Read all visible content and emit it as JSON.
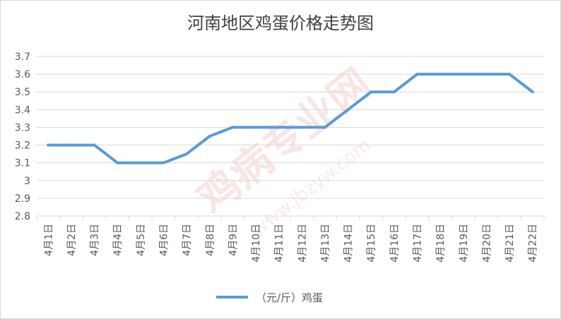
{
  "chart_data": {
    "type": "line",
    "title": "河南地区鸡蛋价格走势图",
    "categories": [
      "4月1日",
      "4月2日",
      "4月3日",
      "4月4日",
      "4月5日",
      "4月6日",
      "4月7日",
      "4月8日",
      "4月9日",
      "4月10日",
      "4月11日",
      "4月12日",
      "4月13日",
      "4月14日",
      "4月15日",
      "4月16日",
      "4月17日",
      "4月18日",
      "4月19日",
      "4月20日",
      "4月21日",
      "4月22日"
    ],
    "series": [
      {
        "name": "（元/斤）鸡蛋",
        "values": [
          3.2,
          3.2,
          3.2,
          3.1,
          3.1,
          3.1,
          3.15,
          3.25,
          3.3,
          3.3,
          3.3,
          3.3,
          3.3,
          3.4,
          3.5,
          3.5,
          3.6,
          3.6,
          3.6,
          3.6,
          3.6,
          3.5
        ]
      }
    ],
    "yticks": [
      "2.8",
      "2.9",
      "3",
      "3.1",
      "3.2",
      "3.3",
      "3.4",
      "3.5",
      "3.6",
      "3.7"
    ],
    "ylim": [
      2.8,
      3.7
    ],
    "grid": true,
    "legend_position": "bottom",
    "line_color": "#5b9bd5",
    "watermark": {
      "main": "鸡病专业网",
      "url": "www.jbzyw.com"
    }
  }
}
